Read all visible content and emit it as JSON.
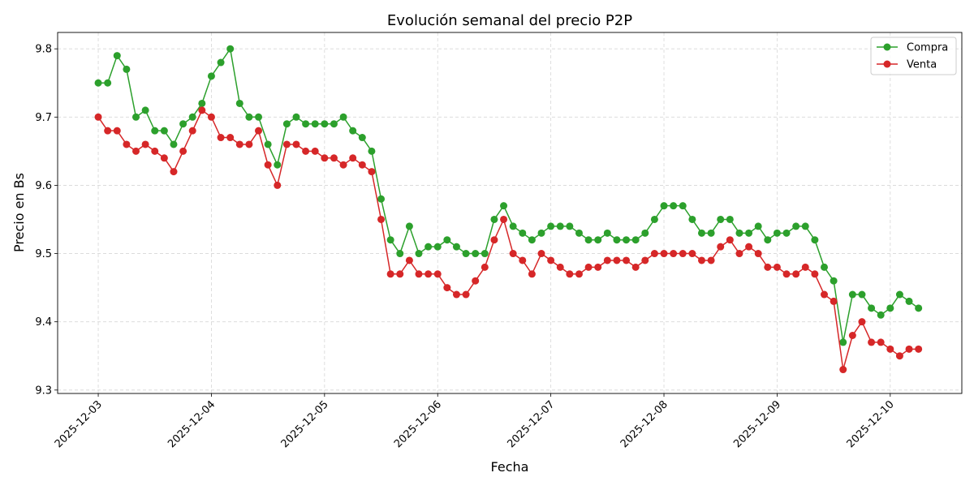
{
  "chart_data": {
    "type": "line",
    "title": "Evolución semanal del precio P2P",
    "xlabel": "Fecha",
    "ylabel": "Precio en Bs",
    "xlim": [
      "2025-12-02 15:23",
      "2025-12-10 15:11"
    ],
    "ylim": [
      9.295,
      9.824
    ],
    "x_ticks": [
      "2025-12-03",
      "2025-12-04",
      "2025-12-05",
      "2025-12-06",
      "2025-12-07",
      "2025-12-08",
      "2025-12-09",
      "2025-12-10"
    ],
    "y_ticks": [
      9.3,
      9.4,
      9.5,
      9.6,
      9.7,
      9.8
    ],
    "y_tick_labels": [
      "9.3",
      "9.4",
      "9.5",
      "9.6",
      "9.7",
      "9.8"
    ],
    "grid": true,
    "legend_position": "top-right",
    "x": [
      "2025-12-03 00:00",
      "2025-12-03 02:00",
      "2025-12-03 04:00",
      "2025-12-03 06:00",
      "2025-12-03 08:00",
      "2025-12-03 10:00",
      "2025-12-03 12:00",
      "2025-12-03 14:00",
      "2025-12-03 16:00",
      "2025-12-03 18:00",
      "2025-12-03 20:00",
      "2025-12-03 22:00",
      "2025-12-04 00:00",
      "2025-12-04 02:00",
      "2025-12-04 04:00",
      "2025-12-04 06:00",
      "2025-12-04 08:00",
      "2025-12-04 10:00",
      "2025-12-04 12:00",
      "2025-12-04 14:00",
      "2025-12-04 16:00",
      "2025-12-04 18:00",
      "2025-12-04 20:00",
      "2025-12-04 22:00",
      "2025-12-05 00:00",
      "2025-12-05 02:00",
      "2025-12-05 04:00",
      "2025-12-05 06:00",
      "2025-12-05 08:00",
      "2025-12-05 10:00",
      "2025-12-05 12:00",
      "2025-12-05 14:00",
      "2025-12-05 16:00",
      "2025-12-05 18:00",
      "2025-12-05 20:00",
      "2025-12-05 22:00",
      "2025-12-06 00:00",
      "2025-12-06 02:00",
      "2025-12-06 04:00",
      "2025-12-06 06:00",
      "2025-12-06 08:00",
      "2025-12-06 10:00",
      "2025-12-06 12:00",
      "2025-12-06 14:00",
      "2025-12-06 16:00",
      "2025-12-06 18:00",
      "2025-12-06 20:00",
      "2025-12-06 22:00",
      "2025-12-07 00:00",
      "2025-12-07 02:00",
      "2025-12-07 04:00",
      "2025-12-07 06:00",
      "2025-12-07 08:00",
      "2025-12-07 10:00",
      "2025-12-07 12:00",
      "2025-12-07 14:00",
      "2025-12-07 16:00",
      "2025-12-07 18:00",
      "2025-12-07 20:00",
      "2025-12-07 22:00",
      "2025-12-08 00:00",
      "2025-12-08 02:00",
      "2025-12-08 04:00",
      "2025-12-08 06:00",
      "2025-12-08 08:00",
      "2025-12-08 10:00",
      "2025-12-08 12:00",
      "2025-12-08 14:00",
      "2025-12-08 16:00",
      "2025-12-08 18:00",
      "2025-12-08 20:00",
      "2025-12-08 22:00",
      "2025-12-09 00:00",
      "2025-12-09 02:00",
      "2025-12-09 04:00",
      "2025-12-09 06:00",
      "2025-12-09 08:00",
      "2025-12-09 10:00",
      "2025-12-09 12:00",
      "2025-12-09 14:00",
      "2025-12-09 16:00",
      "2025-12-09 18:00",
      "2025-12-09 20:00",
      "2025-12-09 22:00",
      "2025-12-10 00:00",
      "2025-12-10 02:00",
      "2025-12-10 04:00",
      "2025-12-10 06:00"
    ],
    "series": [
      {
        "name": "Compra",
        "color": "#2ca02c",
        "marker": "circle",
        "values": [
          9.75,
          9.75,
          9.79,
          9.77,
          9.7,
          9.71,
          9.68,
          9.68,
          9.66,
          9.69,
          9.7,
          9.72,
          9.76,
          9.78,
          9.8,
          9.72,
          9.7,
          9.7,
          9.66,
          9.63,
          9.69,
          9.7,
          9.69,
          9.69,
          9.69,
          9.69,
          9.7,
          9.68,
          9.67,
          9.65,
          9.58,
          9.52,
          9.5,
          9.54,
          9.5,
          9.51,
          9.51,
          9.52,
          9.51,
          9.5,
          9.5,
          9.5,
          9.55,
          9.57,
          9.54,
          9.53,
          9.52,
          9.53,
          9.54,
          9.54,
          9.54,
          9.53,
          9.52,
          9.52,
          9.53,
          9.52,
          9.52,
          9.52,
          9.53,
          9.55,
          9.57,
          9.57,
          9.57,
          9.55,
          9.53,
          9.53,
          9.55,
          9.55,
          9.53,
          9.53,
          9.54,
          9.52,
          9.53,
          9.53,
          9.54,
          9.54,
          9.52,
          9.48,
          9.46,
          9.37,
          9.44,
          9.44,
          9.42,
          9.41,
          9.42,
          9.44,
          9.43,
          9.42
        ]
      },
      {
        "name": "Venta",
        "color": "#d62728",
        "marker": "circle",
        "values": [
          9.7,
          9.68,
          9.68,
          9.66,
          9.65,
          9.66,
          9.65,
          9.64,
          9.62,
          9.65,
          9.68,
          9.71,
          9.7,
          9.67,
          9.67,
          9.66,
          9.66,
          9.68,
          9.63,
          9.6,
          9.66,
          9.66,
          9.65,
          9.65,
          9.64,
          9.64,
          9.63,
          9.64,
          9.63,
          9.62,
          9.55,
          9.47,
          9.47,
          9.49,
          9.47,
          9.47,
          9.47,
          9.45,
          9.44,
          9.44,
          9.46,
          9.48,
          9.52,
          9.55,
          9.5,
          9.49,
          9.47,
          9.5,
          9.49,
          9.48,
          9.47,
          9.47,
          9.48,
          9.48,
          9.49,
          9.49,
          9.49,
          9.48,
          9.49,
          9.5,
          9.5,
          9.5,
          9.5,
          9.5,
          9.49,
          9.49,
          9.51,
          9.52,
          9.5,
          9.51,
          9.5,
          9.48,
          9.48,
          9.47,
          9.47,
          9.48,
          9.47,
          9.44,
          9.43,
          9.33,
          9.38,
          9.4,
          9.37,
          9.37,
          9.36,
          9.35,
          9.36,
          9.36
        ]
      }
    ]
  }
}
